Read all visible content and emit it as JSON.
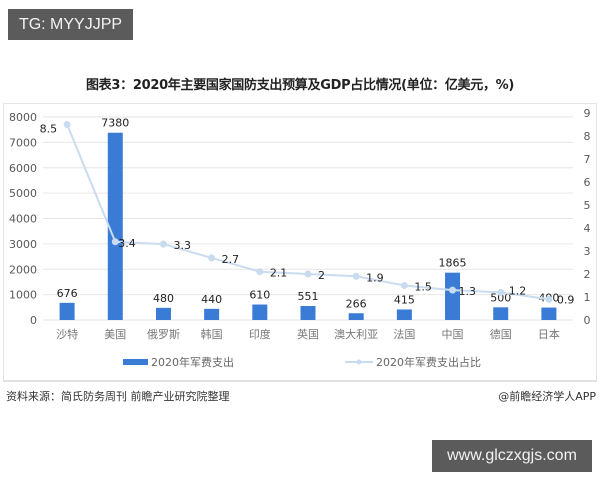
{
  "overlay": {
    "tag_label": "TG: MYYJJPP",
    "url_label": "www.glczxgjs.com"
  },
  "footer": {
    "source": "资料来源：简氏防务周刊 前瞻产业研究院整理",
    "credit": "@前瞻经济学人APP"
  },
  "colors": {
    "bar": "#3a7bd5",
    "line": "#c9dcef",
    "marker": "#c9dcef",
    "grid": "#e6e6e6",
    "axis_text": "#595959"
  },
  "chart_data": {
    "type": "bar+line",
    "title": "图表3：2020年主要国家国防支出预算及GDP占比情况(单位：亿美元，%)",
    "categories": [
      "沙特",
      "美国",
      "俄罗斯",
      "韩国",
      "印度",
      "英国",
      "澳大利亚",
      "法国",
      "中国",
      "德国",
      "日本"
    ],
    "series": [
      {
        "name": "2020年军费支出",
        "type": "bar",
        "axis": "left",
        "values": [
          676,
          7380,
          480,
          440,
          610,
          551,
          266,
          415,
          1865,
          500,
          490
        ],
        "labels": [
          "676",
          "7380",
          "480",
          "440",
          "610",
          "551",
          "266",
          "415",
          "1865",
          "500",
          "490"
        ]
      },
      {
        "name": "2020年军费支出占比",
        "type": "line",
        "axis": "right",
        "values": [
          8.5,
          3.4,
          3.3,
          2.7,
          2.1,
          2,
          1.9,
          1.5,
          1.3,
          1.2,
          0.9
        ],
        "labels": [
          "8.5",
          "3.4",
          "3.3",
          "2.7",
          "2.1",
          "2",
          "1.9",
          "1.5",
          "1.3",
          "1.2",
          "0.9"
        ]
      }
    ],
    "left_axis": {
      "ylim": [
        0,
        8000
      ],
      "ticks": [
        "0",
        "1000",
        "2000",
        "3000",
        "4000",
        "5000",
        "6000",
        "7000",
        "8000"
      ]
    },
    "right_axis": {
      "ylim": [
        0,
        9
      ],
      "ticks": [
        "0",
        "1",
        "2",
        "3",
        "4",
        "5",
        "6",
        "7",
        "8",
        "9"
      ]
    },
    "grid": true,
    "legend": {
      "position": "bottom",
      "entries": [
        "2020年军费支出",
        "2020年军费支出占比"
      ]
    }
  }
}
